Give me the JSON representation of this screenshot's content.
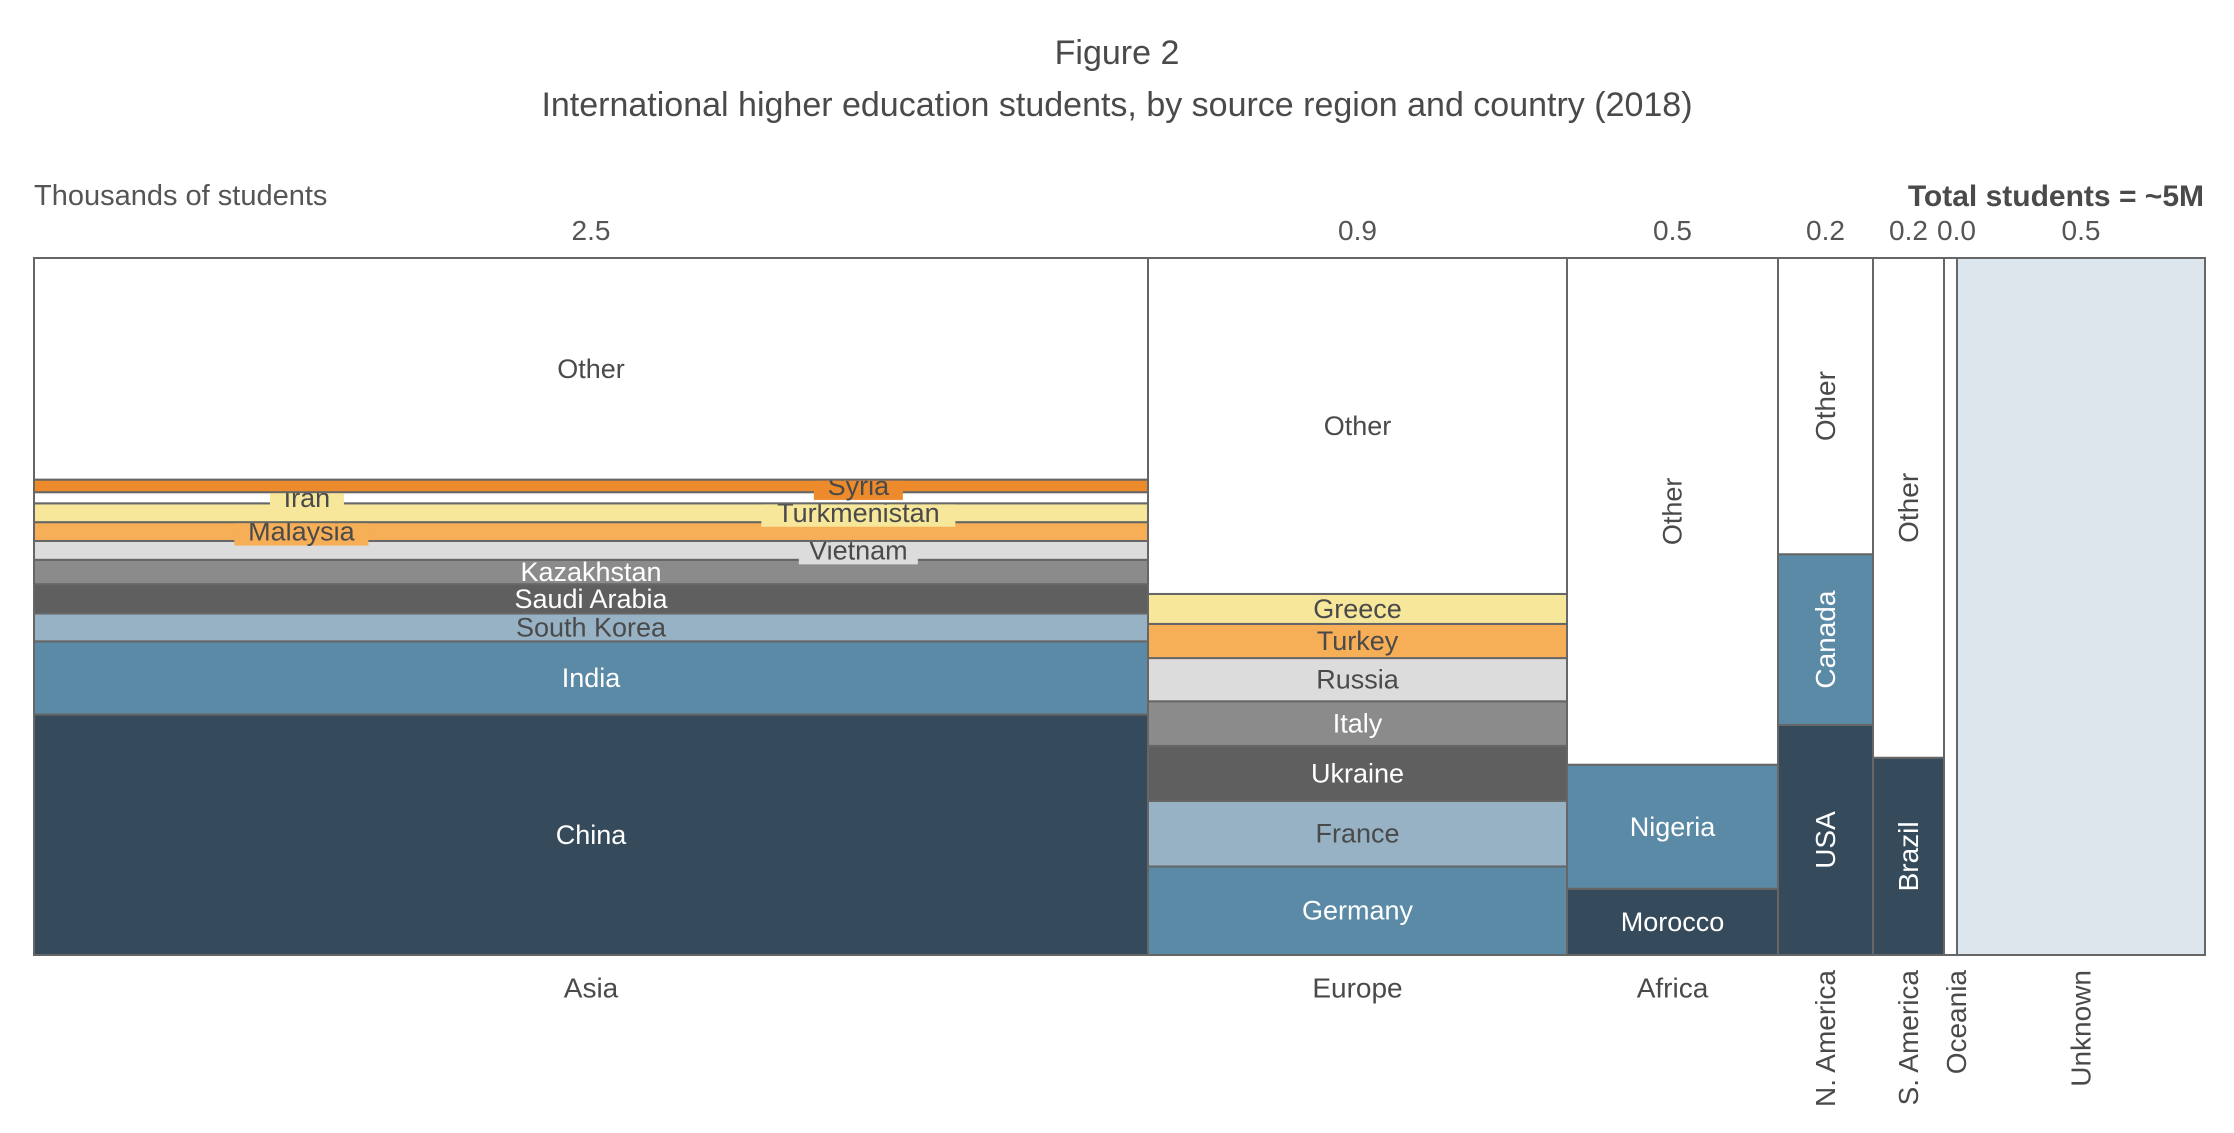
{
  "figure_number": "Figure 2",
  "figure_title": "International higher education students, by source region and country (2018)",
  "unit_label": "Thousands of students",
  "total_label": "Total students = ~5M",
  "colors": {
    "navy": "#354b5c",
    "steel": "#5b8aa6",
    "light_blue": "#97b1c5",
    "dark_gray": "#5f5f5f",
    "mid_gray": "#8b8b8b",
    "light_gray": "#dcdcdc",
    "light_orange": "#f6ae57",
    "pale_yellow": "#f6e79b",
    "dark_orange": "#ec8a2c",
    "white": "#ffffff",
    "unknown": "#dce6ec",
    "border": "#666666"
  },
  "chart_data": {
    "type": "marimekko",
    "regions": [
      {
        "name": "Asia",
        "total_label": "2.5",
        "segments": [
          {
            "name": "China",
            "share": 0.345,
            "color": "navy",
            "label_color": "#ffffff"
          },
          {
            "name": "India",
            "share": 0.105,
            "color": "steel",
            "label_color": "#ffffff"
          },
          {
            "name": "South Korea",
            "share": 0.04,
            "color": "light_blue",
            "label_color": "#4a4a4a"
          },
          {
            "name": "Saudi Arabia",
            "share": 0.042,
            "color": "dark_gray",
            "label_color": "#ffffff"
          },
          {
            "name": "Kazakhstan",
            "share": 0.035,
            "color": "mid_gray",
            "label_color": "#ffffff"
          },
          {
            "name": "Vietnam",
            "share": 0.027,
            "color": "light_gray",
            "label_color": "#4a4a4a",
            "boxed": true,
            "box_color": "light_gray",
            "label_x": 0.74
          },
          {
            "name": "Malaysia",
            "share": 0.027,
            "color": "light_orange",
            "label_color": "#4a4a4a",
            "boxed": true,
            "box_color": "light_orange",
            "label_x": 0.24
          },
          {
            "name": "Turkmenistan",
            "share": 0.027,
            "color": "pale_yellow",
            "label_color": "#4a4a4a",
            "boxed": true,
            "box_color": "pale_yellow",
            "label_x": 0.74
          },
          {
            "name": "Iran",
            "share": 0.016,
            "color": "white",
            "label_color": "#4a4a4a",
            "boxed": true,
            "box_color": "pale_yellow",
            "label_x": 0.245
          },
          {
            "name": "Syria",
            "share": 0.018,
            "color": "dark_orange",
            "label_color": "#4a4a4a",
            "boxed": true,
            "box_color": "dark_orange",
            "label_x": 0.74
          },
          {
            "name": "Other",
            "share": 0.318,
            "color": "white",
            "label_color": "#4a4a4a"
          }
        ]
      },
      {
        "name": "Europe",
        "total_label": "0.9",
        "segments": [
          {
            "name": "Germany",
            "share": 0.127,
            "color": "steel",
            "label_color": "#ffffff"
          },
          {
            "name": "France",
            "share": 0.094,
            "color": "light_blue",
            "label_color": "#4a4a4a"
          },
          {
            "name": "Ukraine",
            "share": 0.079,
            "color": "dark_gray",
            "label_color": "#ffffff"
          },
          {
            "name": "Italy",
            "share": 0.064,
            "color": "mid_gray",
            "label_color": "#ffffff"
          },
          {
            "name": "Russia",
            "share": 0.062,
            "color": "light_gray",
            "label_color": "#4a4a4a"
          },
          {
            "name": "Turkey",
            "share": 0.049,
            "color": "light_orange",
            "label_color": "#4a4a4a"
          },
          {
            "name": "Greece",
            "share": 0.043,
            "color": "pale_yellow",
            "label_color": "#4a4a4a"
          },
          {
            "name": "Other",
            "share": 0.482,
            "color": "white",
            "label_color": "#4a4a4a"
          }
        ]
      },
      {
        "name": "Africa",
        "total_label": "0.5",
        "segments": [
          {
            "name": "Morocco",
            "share": 0.095,
            "color": "navy",
            "label_color": "#ffffff"
          },
          {
            "name": "Nigeria",
            "share": 0.178,
            "color": "steel",
            "label_color": "#ffffff"
          },
          {
            "name": "Other",
            "share": 0.727,
            "color": "white",
            "label_color": "#4a4a4a",
            "vertical": true
          }
        ]
      },
      {
        "name": "N. America",
        "total_label": "0.2",
        "vertical_axis_label": true,
        "segments": [
          {
            "name": "USA",
            "share": 0.33,
            "color": "navy",
            "label_color": "#ffffff",
            "vertical": true
          },
          {
            "name": "Canada",
            "share": 0.245,
            "color": "steel",
            "label_color": "#ffffff",
            "vertical": true
          },
          {
            "name": "Other",
            "share": 0.425,
            "color": "white",
            "label_color": "#4a4a4a",
            "vertical": true
          }
        ]
      },
      {
        "name": "S. America",
        "total_label": "0.2",
        "vertical_axis_label": true,
        "segments": [
          {
            "name": "Brazil",
            "share": 0.283,
            "color": "navy",
            "label_color": "#ffffff",
            "vertical": true
          },
          {
            "name": "Other",
            "share": 0.717,
            "color": "white",
            "label_color": "#4a4a4a",
            "vertical": true
          }
        ]
      },
      {
        "name": "Oceania",
        "total_label": "0.0",
        "vertical_axis_label": true,
        "segments": [
          {
            "name": "",
            "share": 1.0,
            "color": "white",
            "label_color": "#4a4a4a"
          }
        ]
      },
      {
        "name": "Unknown",
        "total_label": "0.5",
        "vertical_axis_label": true,
        "segments": [
          {
            "name": "",
            "share": 1.0,
            "color": "unknown",
            "label_color": "#4a4a4a"
          }
        ]
      }
    ]
  }
}
